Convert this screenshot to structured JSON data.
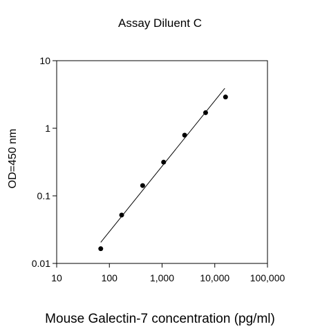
{
  "chart_data": {
    "type": "scatter",
    "title": "Assay Diluent C",
    "xlabel": "Mouse Galectin-7 concentration (pg/ml)",
    "ylabel": "OD=450 nm",
    "x_scale": "log",
    "y_scale": "log",
    "xlim": [
      10,
      100000
    ],
    "ylim": [
      0.01,
      10
    ],
    "x_ticks": [
      10,
      100,
      1000,
      10000,
      100000
    ],
    "x_tick_labels": [
      "10",
      "100",
      "1,000",
      "10,000",
      "100,000"
    ],
    "y_ticks": [
      10,
      1,
      0.1,
      0.01
    ],
    "y_tick_labels": [
      "10",
      "1",
      "0.1",
      "0.01"
    ],
    "grid": false,
    "series": [
      {
        "points": [
          {
            "x": 68.6,
            "y": 0.0165
          },
          {
            "x": 171,
            "y": 0.052
          },
          {
            "x": 428,
            "y": 0.142
          },
          {
            "x": 1070,
            "y": 0.315
          },
          {
            "x": 2680,
            "y": 0.79
          },
          {
            "x": 6700,
            "y": 1.7
          },
          {
            "x": 16000,
            "y": 2.9
          }
        ]
      }
    ],
    "fit_line": {
      "x": [
        68.6,
        15500
      ],
      "y": [
        0.0205,
        3.9
      ]
    }
  }
}
